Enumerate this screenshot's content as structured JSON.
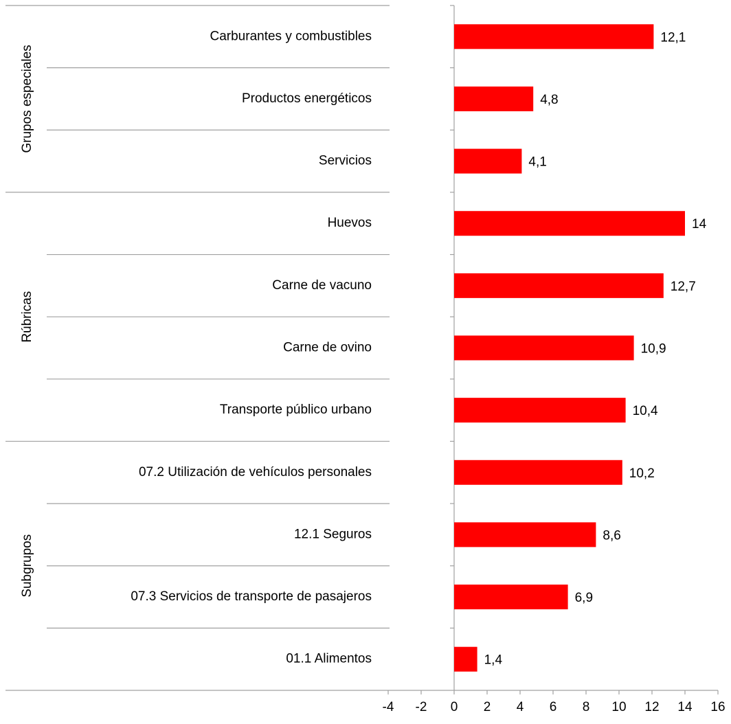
{
  "chart_data": {
    "type": "bar",
    "orientation": "horizontal",
    "color": "#ff0000",
    "groups": [
      {
        "name": "Grupos especiales",
        "categories": [
          "Carburantes y combustibles",
          "Productos energéticos",
          "Servicios"
        ],
        "values": [
          12.1,
          4.8,
          4.1
        ],
        "value_labels": [
          "12,1",
          "4,8",
          "4,1"
        ]
      },
      {
        "name": "Rúbricas",
        "categories": [
          "Huevos",
          "Carne de vacuno",
          "Carne de ovino",
          "Transporte público urbano"
        ],
        "values": [
          14,
          12.7,
          10.9,
          10.4
        ],
        "value_labels": [
          "14",
          "12,7",
          "10,9",
          "10,4"
        ]
      },
      {
        "name": "Subgrupos",
        "categories": [
          "07.2 Utilización de vehículos personales",
          "12.1 Seguros",
          "07.3 Servicios de transporte de pasajeros",
          "01.1 Alimentos"
        ],
        "values": [
          10.2,
          8.6,
          6.9,
          1.4
        ],
        "value_labels": [
          "10,2",
          "8,6",
          "6,9",
          "1,4"
        ]
      }
    ],
    "xlim": [
      -4,
      16
    ],
    "xticks": [
      -4,
      -2,
      0,
      2,
      4,
      6,
      8,
      10,
      12,
      14,
      16
    ]
  }
}
